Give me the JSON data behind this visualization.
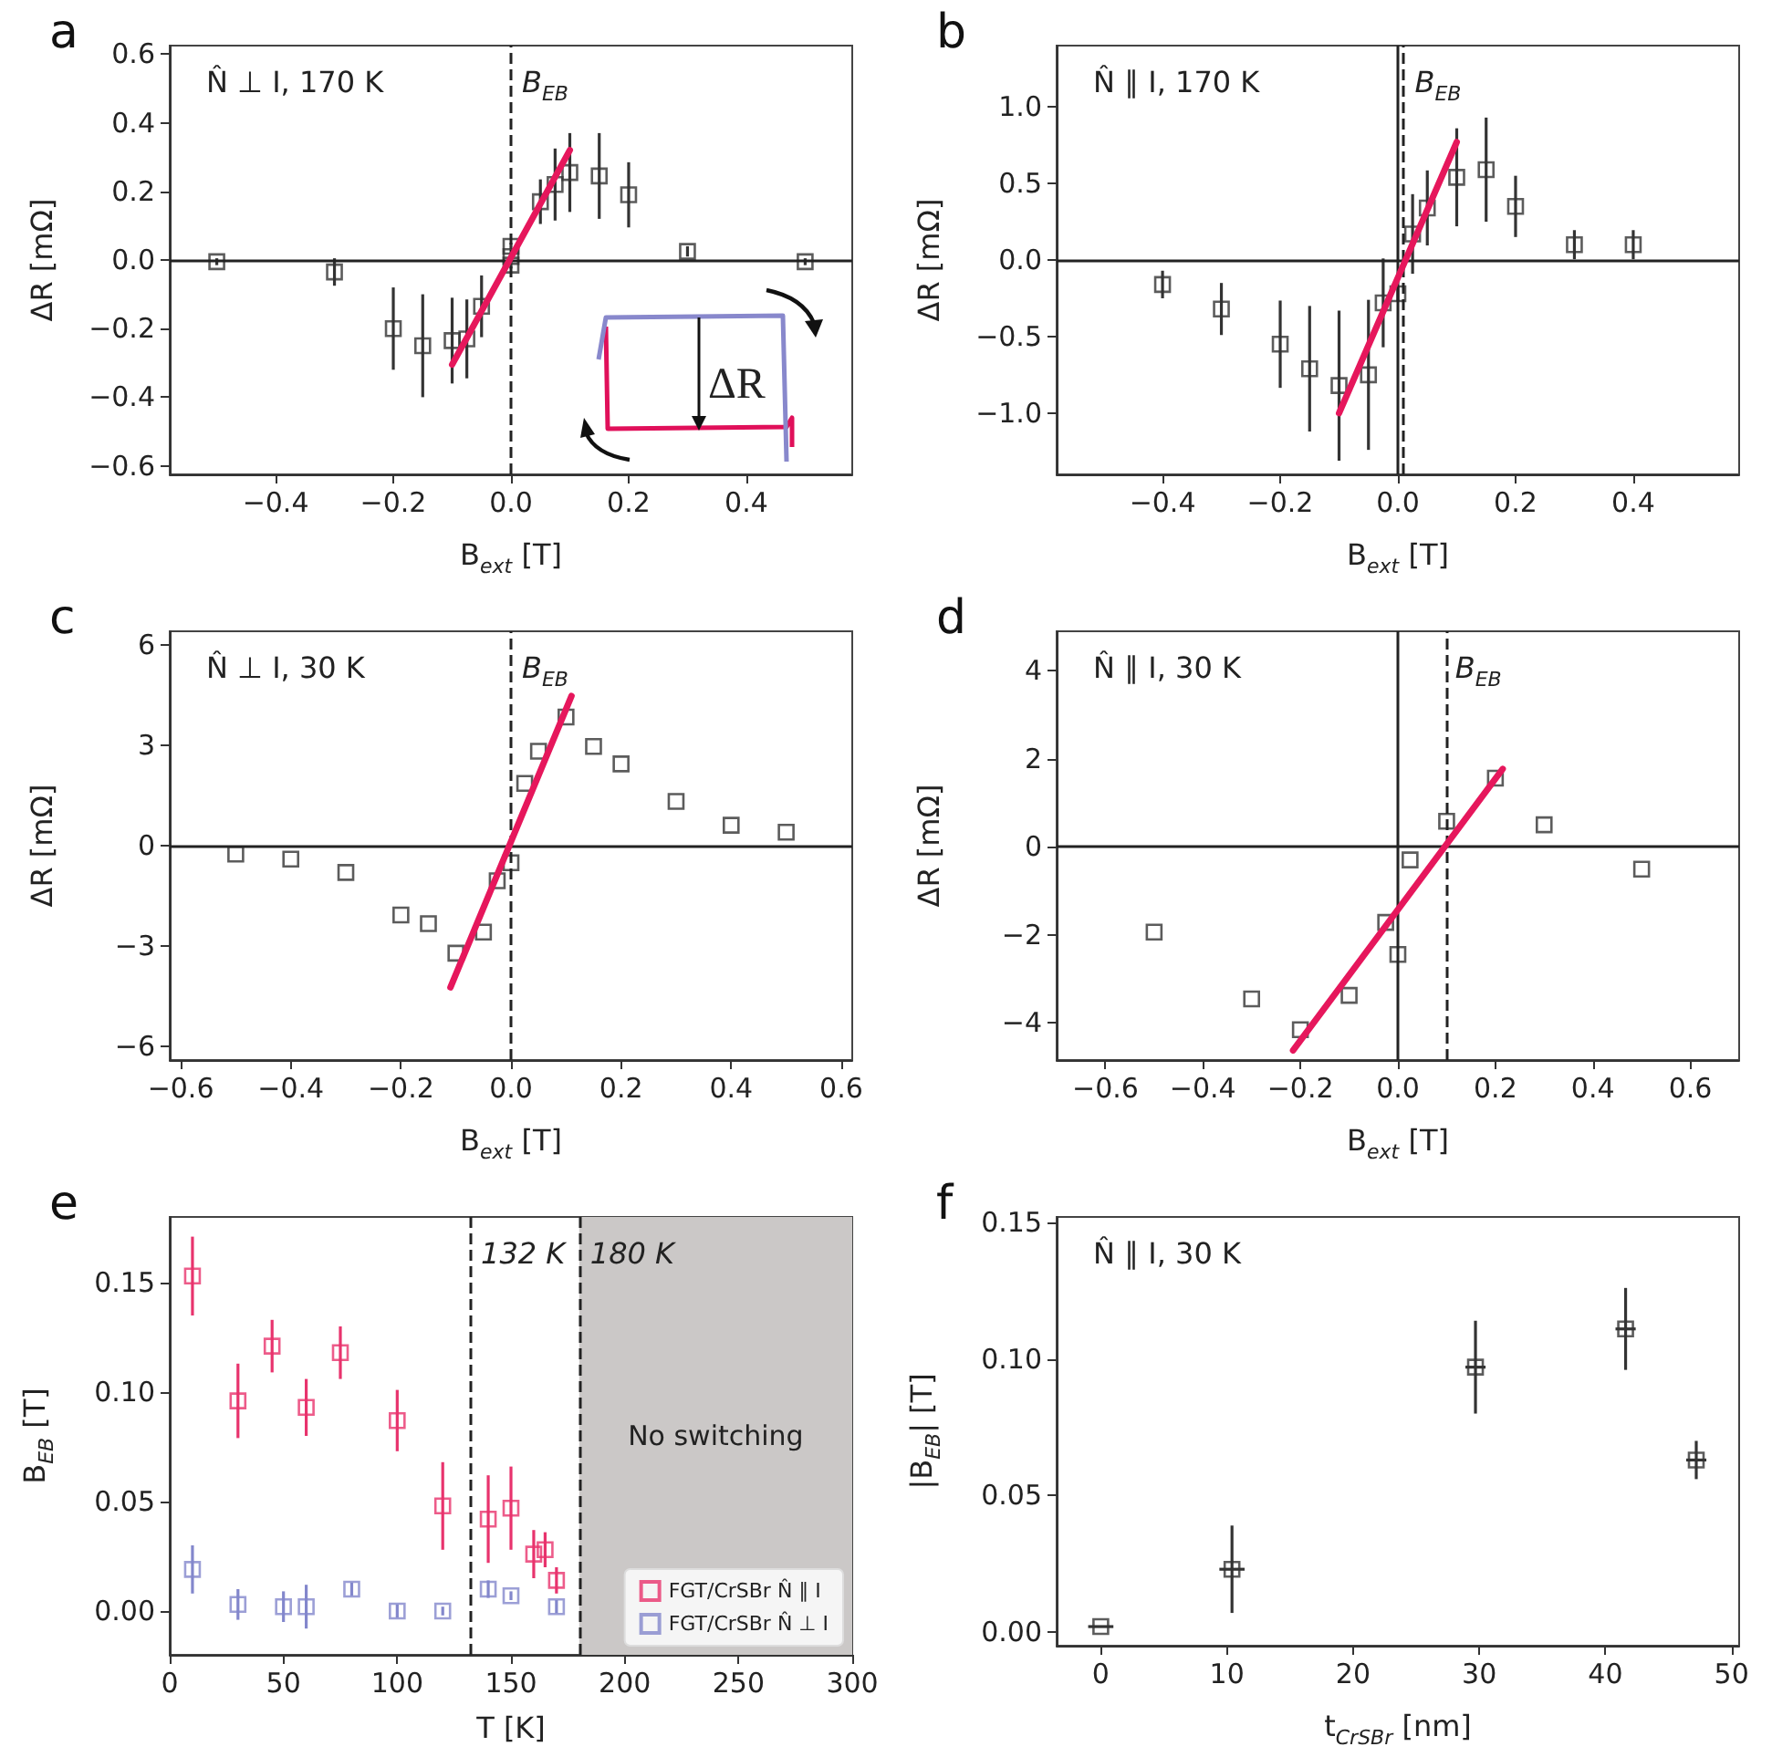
{
  "chart_data": [
    {
      "type": "scatter",
      "title": "a",
      "xlabel": "B$_{ext}$ [T]",
      "ylabel": "ΔR [mΩ]",
      "marker": "square",
      "line_style": "solid",
      "grid": false,
      "legend": false,
      "annotations": [
        "N̂ ⊥ I, 170 K",
        "ΔR"
      ],
      "xlim": [
        -0.58,
        0.58
      ],
      "xticks": [
        {
          "value": -0.4,
          "label": "−0.4"
        },
        {
          "value": -0.2,
          "label": "−0.2"
        },
        {
          "value": 0,
          "label": "0.0"
        },
        {
          "value": 0.2,
          "label": "0.2"
        },
        {
          "value": 0.4,
          "label": "0.4"
        }
      ],
      "ylim": [
        -0.625,
        0.625
      ],
      "yticks": [
        {
          "value": -0.6,
          "label": "−0.6"
        },
        {
          "value": -0.4,
          "label": "−0.4"
        },
        {
          "value": -0.2,
          "label": "−0.2"
        },
        {
          "value": 0,
          "label": "0.0"
        },
        {
          "value": 0.2,
          "label": "0.2"
        },
        {
          "value": 0.4,
          "label": "0.4"
        },
        {
          "value": 0.6,
          "label": "0.6"
        }
      ],
      "ref_lines": [
        {
          "axis": "y",
          "value": 0,
          "line_style": "solid",
          "color": "#222222"
        },
        {
          "axis": "x",
          "value": 0,
          "label": "B$_{EB}$",
          "line_style": "dashed",
          "color": "#222222"
        }
      ],
      "series": [
        {
          "color": "#333333",
          "x": [
            -0.5,
            -0.3,
            -0.2,
            -0.15,
            -0.1,
            -0.075,
            -0.05,
            0,
            0,
            0,
            0.05,
            0.075,
            0.1,
            0.15,
            0.2,
            0.3,
            0.5
          ],
          "values": [
            -0.005,
            -0.035,
            -0.2,
            -0.25,
            -0.235,
            -0.23,
            -0.135,
            0.04,
            0.01,
            -0.015,
            0.17,
            0.22,
            0.255,
            0.245,
            0.19,
            0.025,
            -0.005
          ],
          "errors": [
            0.01,
            0.04,
            0.12,
            0.15,
            0.125,
            0.115,
            0.09,
            0.01,
            0.01,
            0.01,
            0.065,
            0.105,
            0.115,
            0.125,
            0.095,
            0.015,
            0.01
          ]
        },
        {
          "type": "line",
          "marker": "none",
          "color": "#e6175c",
          "x": [
            -0.1,
            0.1
          ],
          "values": [
            -0.305,
            0.32
          ]
        }
      ]
    },
    {
      "type": "scatter",
      "title": "b",
      "xlabel": "B$_{ext}$ [T]",
      "ylabel": "ΔR [mΩ]",
      "marker": "square",
      "line_style": "solid",
      "grid": false,
      "legend": false,
      "annotations": [
        "N̂ ∥ I, 170 K"
      ],
      "xlim": [
        -0.58,
        0.58
      ],
      "xticks": [
        {
          "value": -0.4,
          "label": "−0.4"
        },
        {
          "value": -0.2,
          "label": "−0.2"
        },
        {
          "value": 0,
          "label": "0.0"
        },
        {
          "value": 0.2,
          "label": "0.2"
        },
        {
          "value": 0.4,
          "label": "0.4"
        }
      ],
      "ylim": [
        -1.4,
        1.4
      ],
      "yticks": [
        {
          "value": -1,
          "label": "−1.0"
        },
        {
          "value": -0.5,
          "label": "−0.5"
        },
        {
          "value": 0,
          "label": "0.0"
        },
        {
          "value": 0.5,
          "label": "0.5"
        },
        {
          "value": 1,
          "label": "1.0"
        }
      ],
      "ref_lines": [
        {
          "axis": "y",
          "value": 0,
          "line_style": "solid",
          "color": "#222222"
        },
        {
          "axis": "x",
          "value": 0,
          "line_style": "solid",
          "color": "#222222"
        },
        {
          "axis": "x",
          "value": 0.01,
          "label": "B$_{EB}$",
          "line_style": "dashed",
          "color": "#222222"
        }
      ],
      "series": [
        {
          "color": "#333333",
          "x": [
            -0.4,
            -0.3,
            -0.2,
            -0.15,
            -0.1,
            -0.05,
            -0.025,
            0,
            0.025,
            0.05,
            0.1,
            0.15,
            0.2,
            0.3,
            0.4
          ],
          "values": [
            -0.16,
            -0.32,
            -0.55,
            -0.71,
            -0.82,
            -0.75,
            -0.28,
            -0.22,
            0.17,
            0.34,
            0.54,
            0.59,
            0.35,
            0.1,
            0.1
          ],
          "errors": [
            0.09,
            0.17,
            0.285,
            0.41,
            0.49,
            0.49,
            0.29,
            0.05,
            0.26,
            0.245,
            0.32,
            0.34,
            0.2,
            0.095,
            0.095
          ]
        },
        {
          "type": "line",
          "marker": "none",
          "color": "#e6175c",
          "x": [
            -0.1,
            0.1
          ],
          "values": [
            -1.0,
            0.77
          ]
        }
      ]
    },
    {
      "type": "scatter",
      "title": "c",
      "xlabel": "B$_{ext}$ [T]",
      "ylabel": "ΔR [mΩ]",
      "marker": "square",
      "line_style": "solid",
      "grid": false,
      "legend": false,
      "annotations": [
        "N̂ ⊥ I, 30 K"
      ],
      "xlim": [
        -0.62,
        0.62
      ],
      "xticks": [
        {
          "value": -0.6,
          "label": "−0.6"
        },
        {
          "value": -0.4,
          "label": "−0.4"
        },
        {
          "value": -0.2,
          "label": "−0.2"
        },
        {
          "value": 0,
          "label": "0.0"
        },
        {
          "value": 0.2,
          "label": "0.2"
        },
        {
          "value": 0.4,
          "label": "0.4"
        },
        {
          "value": 0.6,
          "label": "0.6"
        }
      ],
      "ylim": [
        -6.4,
        6.4
      ],
      "yticks": [
        {
          "value": -6,
          "label": "−6"
        },
        {
          "value": -3,
          "label": "−3"
        },
        0,
        3,
        6
      ],
      "ref_lines": [
        {
          "axis": "y",
          "value": 0,
          "line_style": "solid",
          "color": "#222222"
        },
        {
          "axis": "x",
          "value": 0,
          "label": "B$_{EB}$",
          "line_style": "dashed",
          "color": "#222222"
        }
      ],
      "series": [
        {
          "color": "#333333",
          "x": [
            -0.5,
            -0.4,
            -0.3,
            -0.2,
            -0.15,
            -0.1,
            -0.05,
            -0.025,
            0,
            0.025,
            0.05,
            0.1,
            0.15,
            0.2,
            0.3,
            0.4,
            0.5
          ],
          "values": [
            -0.25,
            -0.4,
            -0.8,
            -2.07,
            -2.33,
            -3.21,
            -2.58,
            -1.05,
            -0.51,
            1.86,
            2.82,
            3.84,
            2.96,
            2.44,
            1.32,
            0.61,
            0.4
          ]
        },
        {
          "type": "line",
          "marker": "none",
          "color": "#e6175c",
          "x": [
            -0.11,
            0.11
          ],
          "values": [
            -4.23,
            4.47
          ]
        }
      ]
    },
    {
      "type": "scatter",
      "title": "d",
      "xlabel": "B$_{ext}$ [T]",
      "ylabel": "ΔR [mΩ]",
      "marker": "square",
      "line_style": "solid",
      "grid": false,
      "legend": false,
      "annotations": [
        "N̂ ∥ I, 30 K"
      ],
      "xlim": [
        -0.7,
        0.7
      ],
      "xticks": [
        {
          "value": -0.6,
          "label": "−0.6"
        },
        {
          "value": -0.4,
          "label": "−0.4"
        },
        {
          "value": -0.2,
          "label": "−0.2"
        },
        {
          "value": 0,
          "label": "0.0"
        },
        {
          "value": 0.2,
          "label": "0.2"
        },
        {
          "value": 0.4,
          "label": "0.4"
        },
        {
          "value": 0.6,
          "label": "0.6"
        }
      ],
      "ylim": [
        -4.85,
        4.9
      ],
      "yticks": [
        {
          "value": -4,
          "label": "−4"
        },
        {
          "value": -2,
          "label": "−2"
        },
        0,
        2,
        4
      ],
      "ref_lines": [
        {
          "axis": "y",
          "value": 0,
          "line_style": "solid",
          "color": "#222222"
        },
        {
          "axis": "x",
          "value": 0,
          "line_style": "solid",
          "color": "#222222"
        },
        {
          "axis": "x",
          "value": 0.095,
          "label": "B$_{EB}$",
          "line_style": "dashed",
          "color": "#222222"
        }
      ],
      "series": [
        {
          "color": "#333333",
          "x": [
            -0.5,
            -0.3,
            -0.2,
            -0.1,
            -0.025,
            0,
            0.025,
            0.1,
            0.2,
            0.3,
            0.5
          ],
          "values": [
            -1.94,
            -3.46,
            -4.16,
            -3.38,
            -1.72,
            -2.45,
            -0.3,
            0.58,
            1.56,
            0.5,
            -0.51
          ]
        },
        {
          "type": "line",
          "marker": "none",
          "color": "#e6175c",
          "x": [
            -0.215,
            0.215
          ],
          "values": [
            -4.63,
            1.77
          ]
        }
      ]
    },
    {
      "type": "scatter",
      "title": "e",
      "xlabel": "T [K]",
      "ylabel": "B$_{EB}$ [T]",
      "marker": "square",
      "grid": false,
      "legend": "bottom right",
      "xlim": [
        0,
        300
      ],
      "xticks": [
        0,
        50,
        100,
        150,
        200,
        250,
        300
      ],
      "ylim": [
        -0.02,
        0.18
      ],
      "yticks": [
        {
          "value": 0,
          "label": "0.00"
        },
        {
          "value": 0.05,
          "label": "0.05"
        },
        {
          "value": 0.1,
          "label": "0.10"
        },
        {
          "value": 0.15,
          "label": "0.15"
        }
      ],
      "ref_lines": [
        {
          "axis": "x",
          "value": 132,
          "label": "132 K",
          "line_style": "dashed",
          "color": "#222222"
        },
        {
          "axis": "x",
          "value": 180,
          "label": "180 K",
          "line_style": "dashed",
          "color": "#222222"
        }
      ],
      "bands": [
        {
          "axis": "x",
          "from": 180,
          "to": 300,
          "label": "No switching",
          "color": "#cbc8c7"
        }
      ],
      "series": [
        {
          "name": "FGT/CrSBr N̂ ∥ I",
          "color": "#e8336d",
          "x": [
            10,
            30,
            45,
            60,
            75,
            100,
            120,
            140,
            150,
            160,
            165,
            170
          ],
          "values": [
            0.153,
            0.096,
            0.121,
            0.093,
            0.118,
            0.087,
            0.048,
            0.042,
            0.047,
            0.026,
            0.028,
            0.014
          ],
          "errors": [
            0.018,
            0.017,
            0.012,
            0.013,
            0.012,
            0.014,
            0.02,
            0.02,
            0.019,
            0.011,
            0.008,
            0.006
          ]
        },
        {
          "name": "FGT/CrSBr N̂ ⊥ I",
          "color": "#8387cc",
          "x": [
            10,
            30,
            50,
            60,
            80,
            100,
            120,
            140,
            150,
            170
          ],
          "values": [
            0.019,
            0.003,
            0.002,
            0.002,
            0.01,
            0,
            0,
            0.01,
            0.007,
            0.002
          ],
          "errors": [
            0.011,
            0.007,
            0.007,
            0.01,
            0.003,
            0.003,
            0.002,
            0.004,
            0.002,
            0.003
          ]
        }
      ]
    },
    {
      "type": "scatter",
      "title": "f",
      "xlabel": "t$_{CrSBr}$ [nm]",
      "ylabel": "|B$_{EB}$| [T]",
      "marker": "square",
      "grid": false,
      "legend": false,
      "annotations": [
        "N̂ ∥ I, 30 K"
      ],
      "xlim": [
        -3.5,
        50.6
      ],
      "xticks": [
        0,
        10,
        20,
        30,
        40,
        50
      ],
      "ylim": [
        -0.005,
        0.152
      ],
      "yticks": [
        {
          "value": 0,
          "label": "0.00"
        },
        {
          "value": 0.05,
          "label": "0.05"
        },
        {
          "value": 0.1,
          "label": "0.10"
        },
        {
          "value": 0.15,
          "label": "0.15"
        }
      ],
      "series": [
        {
          "color": "#333333",
          "x": [
            0,
            10.4,
            29.7,
            41.6,
            47.2
          ],
          "values": [
            0.002,
            0.023,
            0.097,
            0.111,
            0.063
          ],
          "errors": [
            null,
            0.016,
            0.017,
            0.015,
            0.007
          ],
          "xerrors": [
            1,
            1,
            0.8,
            0.8,
            0.8
          ]
        }
      ]
    }
  ]
}
